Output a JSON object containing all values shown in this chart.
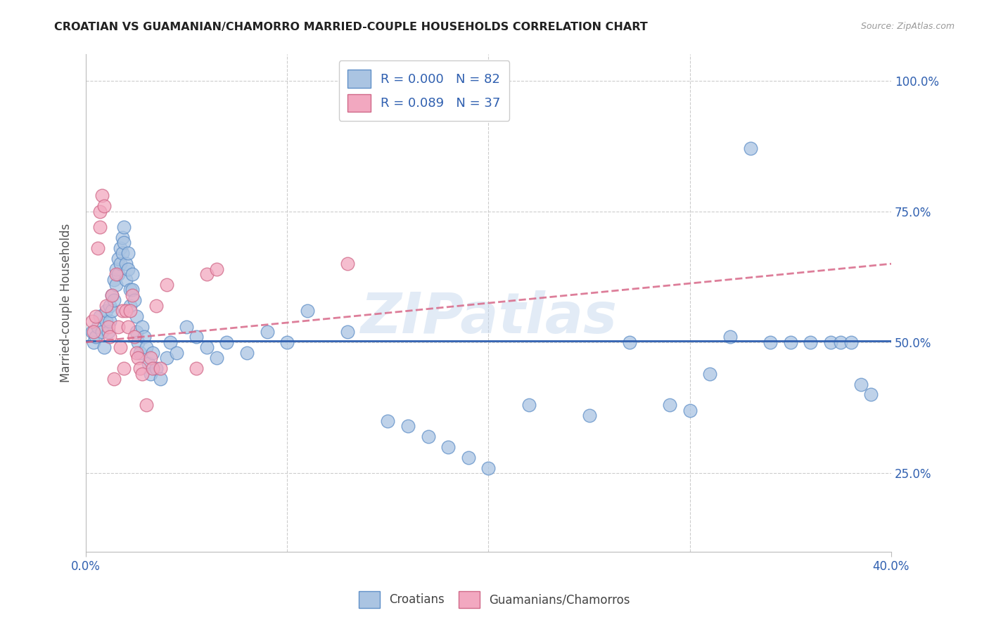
{
  "title": "CROATIAN VS GUAMANIAN/CHAMORRO MARRIED-COUPLE HOUSEHOLDS CORRELATION CHART",
  "source": "Source: ZipAtlas.com",
  "ylabel": "Married-couple Households",
  "xlim": [
    0.0,
    0.4
  ],
  "ylim": [
    0.1,
    1.05
  ],
  "legend_blue_R": "R = 0.000",
  "legend_blue_N": "N = 82",
  "legend_pink_R": "R = 0.089",
  "legend_pink_N": "N = 37",
  "blue_color": "#aac4e2",
  "pink_color": "#f2a8c0",
  "blue_edge_color": "#6090c8",
  "pink_edge_color": "#d06888",
  "blue_line_color": "#3060b0",
  "pink_line_color": "#d86888",
  "watermark": "ZIPatlas",
  "background_color": "#ffffff",
  "grid_color": "#cccccc",
  "blue_scatter_x": [
    0.003,
    0.004,
    0.005,
    0.006,
    0.007,
    0.008,
    0.009,
    0.01,
    0.01,
    0.011,
    0.012,
    0.012,
    0.013,
    0.013,
    0.014,
    0.014,
    0.015,
    0.015,
    0.016,
    0.016,
    0.017,
    0.017,
    0.018,
    0.018,
    0.019,
    0.019,
    0.02,
    0.02,
    0.021,
    0.021,
    0.022,
    0.022,
    0.023,
    0.023,
    0.024,
    0.025,
    0.025,
    0.026,
    0.027,
    0.028,
    0.029,
    0.03,
    0.031,
    0.032,
    0.033,
    0.035,
    0.037,
    0.04,
    0.042,
    0.045,
    0.05,
    0.055,
    0.06,
    0.065,
    0.07,
    0.08,
    0.09,
    0.1,
    0.11,
    0.13,
    0.15,
    0.16,
    0.17,
    0.18,
    0.19,
    0.2,
    0.22,
    0.25,
    0.27,
    0.29,
    0.3,
    0.31,
    0.32,
    0.33,
    0.34,
    0.35,
    0.36,
    0.37,
    0.375,
    0.38,
    0.385,
    0.39
  ],
  "blue_scatter_y": [
    0.52,
    0.5,
    0.51,
    0.53,
    0.55,
    0.52,
    0.49,
    0.54,
    0.56,
    0.52,
    0.57,
    0.54,
    0.59,
    0.56,
    0.62,
    0.58,
    0.64,
    0.61,
    0.66,
    0.63,
    0.68,
    0.65,
    0.7,
    0.67,
    0.72,
    0.69,
    0.65,
    0.62,
    0.67,
    0.64,
    0.6,
    0.57,
    0.63,
    0.6,
    0.58,
    0.55,
    0.52,
    0.5,
    0.48,
    0.53,
    0.51,
    0.49,
    0.46,
    0.44,
    0.48,
    0.45,
    0.43,
    0.47,
    0.5,
    0.48,
    0.53,
    0.51,
    0.49,
    0.47,
    0.5,
    0.48,
    0.52,
    0.5,
    0.56,
    0.52,
    0.35,
    0.34,
    0.32,
    0.3,
    0.28,
    0.26,
    0.38,
    0.36,
    0.5,
    0.38,
    0.37,
    0.44,
    0.51,
    0.87,
    0.5,
    0.5,
    0.5,
    0.5,
    0.5,
    0.5,
    0.42,
    0.4
  ],
  "pink_scatter_x": [
    0.003,
    0.004,
    0.005,
    0.006,
    0.007,
    0.007,
    0.008,
    0.009,
    0.01,
    0.011,
    0.012,
    0.013,
    0.014,
    0.015,
    0.016,
    0.017,
    0.018,
    0.019,
    0.02,
    0.021,
    0.022,
    0.023,
    0.024,
    0.025,
    0.026,
    0.027,
    0.028,
    0.03,
    0.032,
    0.033,
    0.035,
    0.037,
    0.04,
    0.055,
    0.06,
    0.065,
    0.13
  ],
  "pink_scatter_y": [
    0.54,
    0.52,
    0.55,
    0.68,
    0.75,
    0.72,
    0.78,
    0.76,
    0.57,
    0.53,
    0.51,
    0.59,
    0.43,
    0.63,
    0.53,
    0.49,
    0.56,
    0.45,
    0.56,
    0.53,
    0.56,
    0.59,
    0.51,
    0.48,
    0.47,
    0.45,
    0.44,
    0.38,
    0.47,
    0.45,
    0.57,
    0.45,
    0.61,
    0.45,
    0.63,
    0.64,
    0.65
  ],
  "blue_trend_x": [
    0.0,
    0.4
  ],
  "blue_trend_y": [
    0.503,
    0.503
  ],
  "pink_trend_x": [
    0.0,
    0.4
  ],
  "pink_trend_y": [
    0.5,
    0.65
  ],
  "y_ticks": [
    0.25,
    0.5,
    0.75,
    1.0
  ],
  "y_tick_labels": [
    "25.0%",
    "50.0%",
    "75.0%",
    "100.0%"
  ],
  "x_ticks": [
    0.0,
    0.4
  ],
  "x_tick_labels": [
    "0.0%",
    "40.0%"
  ]
}
